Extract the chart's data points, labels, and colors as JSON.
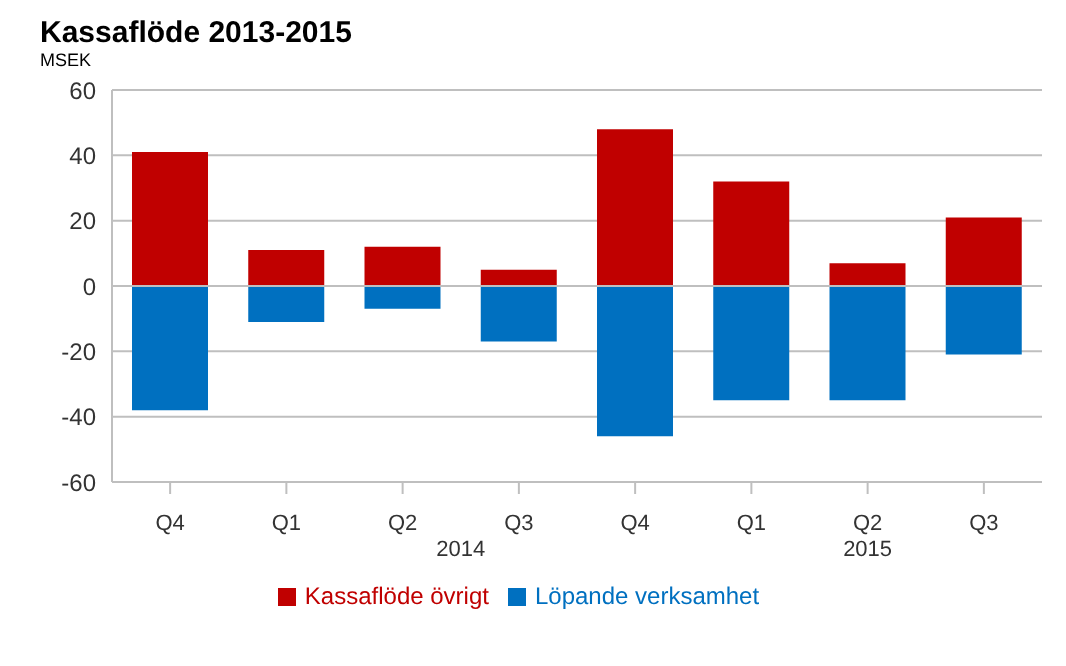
{
  "chart_data": {
    "type": "bar",
    "title": "Kassaflöde 2013-2015",
    "subtitle": "MSEK",
    "categories": [
      "Q4",
      "Q1",
      "Q2",
      "Q3",
      "Q4",
      "Q1",
      "Q2",
      "Q3"
    ],
    "stacked": true,
    "series": [
      {
        "name": "Löpande verksamhet",
        "color": "#0070c0",
        "values": [
          -38,
          -11,
          -7,
          -17,
          -46,
          -35,
          -35,
          -21
        ]
      },
      {
        "name": "Kassaflöde övrigt",
        "color": "#c00000",
        "values": [
          41,
          11,
          12,
          5,
          48,
          32,
          7,
          21
        ]
      }
    ],
    "ylim": [
      -60,
      60
    ],
    "yticks": [
      -60,
      -40,
      -20,
      0,
      20,
      40,
      60
    ],
    "grid": "y",
    "legend": "bottom",
    "annotations": [
      "2014",
      "2015"
    ]
  }
}
